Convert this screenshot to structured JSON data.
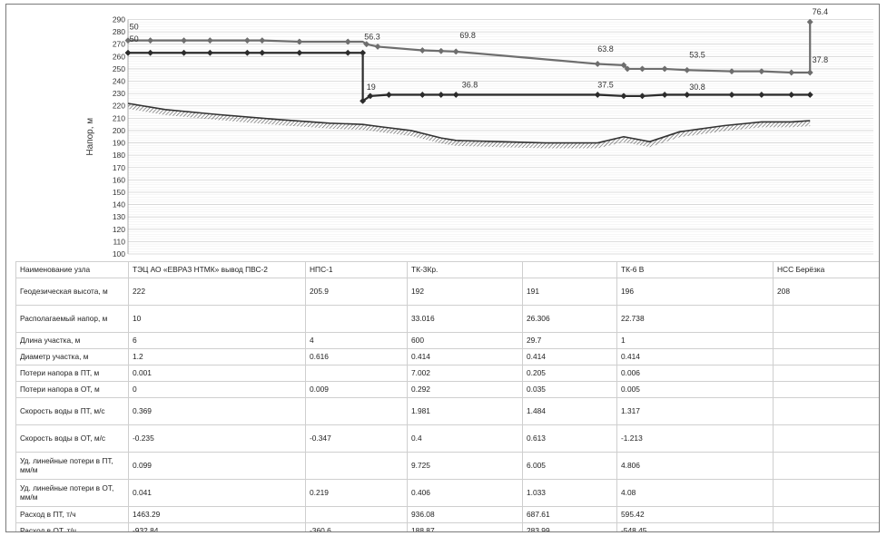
{
  "chart_data": {
    "type": "line",
    "ylabel": "Напор, м",
    "ylim": [
      100,
      290
    ],
    "yticks": [
      100,
      110,
      120,
      130,
      140,
      150,
      160,
      170,
      180,
      190,
      200,
      210,
      220,
      230,
      240,
      250,
      260,
      270,
      280,
      290
    ],
    "x_range": [
      0,
      1000
    ],
    "grid": true,
    "series": [
      {
        "key": "supply_line",
        "color": "#6e6e6e",
        "points": [
          [
            0,
            273
          ],
          [
            30,
            273
          ],
          [
            75,
            273
          ],
          [
            110,
            273
          ],
          [
            160,
            273
          ],
          [
            180,
            273
          ],
          [
            230,
            272
          ],
          [
            295,
            272
          ],
          [
            315,
            272
          ],
          [
            320,
            270
          ],
          [
            335,
            268
          ],
          [
            395,
            265
          ],
          [
            440,
            264
          ],
          [
            630,
            254
          ],
          [
            665,
            253
          ],
          [
            670,
            250
          ],
          [
            690,
            250
          ],
          [
            720,
            250
          ],
          [
            750,
            249
          ],
          [
            810,
            248
          ],
          [
            850,
            248
          ],
          [
            890,
            247
          ],
          [
            905,
            247
          ],
          [
            915,
            247
          ]
        ],
        "marker_x": [
          0,
          30,
          75,
          110,
          160,
          180,
          230,
          295,
          320,
          335,
          395,
          420,
          440,
          630,
          665,
          670,
          690,
          720,
          750,
          810,
          850,
          890,
          915
        ]
      },
      {
        "key": "upper_dark_line",
        "color": "#2c2c2c",
        "points": [
          [
            0,
            263
          ],
          [
            30,
            263
          ],
          [
            75,
            263
          ],
          [
            110,
            263
          ],
          [
            160,
            263
          ],
          [
            180,
            263
          ],
          [
            230,
            263
          ],
          [
            295,
            263
          ],
          [
            315,
            263
          ],
          [
            315,
            224
          ]
        ],
        "marker_x": [
          0,
          30,
          75,
          110,
          160,
          180,
          230,
          295,
          315
        ]
      },
      {
        "key": "return_line",
        "color": "#2c2c2c",
        "points": [
          [
            315,
            224
          ],
          [
            325,
            228
          ],
          [
            350,
            229
          ],
          [
            395,
            229
          ],
          [
            420,
            229
          ],
          [
            440,
            229
          ],
          [
            630,
            229
          ],
          [
            665,
            228
          ],
          [
            690,
            228
          ],
          [
            720,
            229
          ],
          [
            750,
            229
          ],
          [
            810,
            229
          ],
          [
            850,
            229
          ],
          [
            890,
            229
          ],
          [
            915,
            229
          ]
        ],
        "marker_x": [
          315,
          325,
          350,
          395,
          420,
          440,
          630,
          665,
          690,
          720,
          750,
          810,
          850,
          890,
          915
        ]
      },
      {
        "key": "terrain",
        "color": "#333333",
        "points": [
          [
            0,
            222
          ],
          [
            50,
            217
          ],
          [
            120,
            213
          ],
          [
            200,
            209
          ],
          [
            270,
            206
          ],
          [
            315,
            205
          ],
          [
            340,
            203
          ],
          [
            380,
            200
          ],
          [
            420,
            194
          ],
          [
            440,
            192
          ],
          [
            500,
            191
          ],
          [
            560,
            190
          ],
          [
            630,
            190
          ],
          [
            665,
            195
          ],
          [
            700,
            191
          ],
          [
            740,
            199
          ],
          [
            800,
            204
          ],
          [
            850,
            207
          ],
          [
            890,
            207
          ],
          [
            915,
            208
          ]
        ]
      },
      {
        "key": "pump_segment",
        "color": "#6e6e6e",
        "points": [
          [
            915,
            248
          ],
          [
            915,
            288
          ]
        ],
        "marker_x": [
          915
        ]
      }
    ],
    "annotations": [
      {
        "text": "50",
        "x": 2,
        "y": 282
      },
      {
        "text": "50",
        "x": 2,
        "y": 272
      },
      {
        "text": "56.3",
        "x": 317,
        "y": 274
      },
      {
        "text": "69.8",
        "x": 445,
        "y": 275
      },
      {
        "text": "63.8",
        "x": 630,
        "y": 264
      },
      {
        "text": "53.5",
        "x": 753,
        "y": 259
      },
      {
        "text": "76.4",
        "x": 918,
        "y": 294
      },
      {
        "text": "37.8",
        "x": 918,
        "y": 255
      },
      {
        "text": "19",
        "x": 320,
        "y": 233
      },
      {
        "text": "36.8",
        "x": 448,
        "y": 235
      },
      {
        "text": "37.5",
        "x": 630,
        "y": 235
      },
      {
        "text": "30.8",
        "x": 753,
        "y": 233
      }
    ]
  },
  "table": {
    "column_names": [
      "ТЭЦ АО «ЕВРАЗ НТМК» вывод ПВС-2",
      "НПС-1",
      "ТК-3Кр.",
      "",
      "ТК-6 В",
      "НСС Берёзка"
    ],
    "rows": [
      {
        "label": "Наименование узла",
        "values": [
          "ТЭЦ АО «ЕВРАЗ НТМК» вывод ПВС-2",
          "НПС-1",
          "ТК-3Кр.",
          "",
          "ТК-6 В",
          "НСС Берёзка"
        ]
      },
      {
        "label": "Геодезическая высота, м",
        "values": [
          "222",
          "205.9",
          "192",
          "191",
          "196",
          "208"
        ]
      },
      {
        "label": "Располагаемый напор, м",
        "values": [
          "10",
          "",
          "33.016",
          "26.306",
          "22.738",
          ""
        ]
      },
      {
        "label": "Длина участка, м",
        "values": [
          "6",
          "4",
          "600",
          "29.7",
          "1",
          ""
        ]
      },
      {
        "label": "Диаметр участка, м",
        "values": [
          "1.2",
          "0.616",
          "0.414",
          "0.414",
          "0.414",
          ""
        ]
      },
      {
        "label": "Потери напора в ПТ, м",
        "values": [
          "0.001",
          "",
          "7.002",
          "0.205",
          "0.006",
          ""
        ]
      },
      {
        "label": "Потери напора в ОТ, м",
        "values": [
          "0",
          "0.009",
          "0.292",
          "0.035",
          "0.005",
          ""
        ]
      },
      {
        "label": "Скорость воды в ПТ, м/с",
        "values": [
          "0.369",
          "",
          "1.981",
          "1.484",
          "1.317",
          ""
        ]
      },
      {
        "label": "Скорость воды в ОТ, м/с",
        "values": [
          "-0.235",
          "-0.347",
          "0.4",
          "0.613",
          "-1.213",
          ""
        ]
      },
      {
        "label": "Уд. линейные потери в ПТ, мм/м",
        "values": [
          "0.099",
          "",
          "9.725",
          "6.005",
          "4.806",
          ""
        ]
      },
      {
        "label": "Уд. линейные потери в ОТ, мм/м",
        "values": [
          "0.041",
          "0.219",
          "0.406",
          "1.033",
          "4.08",
          ""
        ]
      },
      {
        "label": "Расход в ПТ, т/ч",
        "values": [
          "1463.29",
          "",
          "936.08",
          "687.61",
          "595.42",
          ""
        ]
      },
      {
        "label": "Расход в ОТ, т/ч",
        "values": [
          "-932.84",
          "-360.6",
          "188.87",
          "283.99",
          "-548.45",
          ""
        ]
      }
    ]
  }
}
